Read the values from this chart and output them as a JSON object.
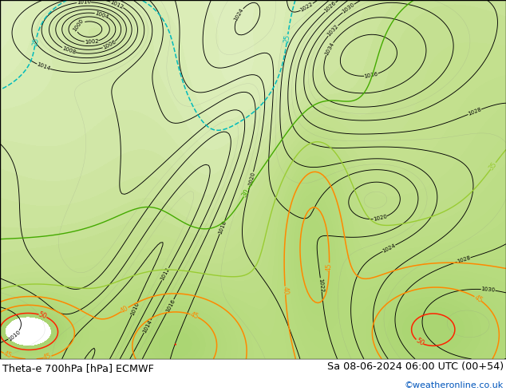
{
  "title_left": "Theta-e 700hPa [hPa] ECMWF",
  "title_right": "Sa 08-06-2024 06:00 UTC (00+54)",
  "credit": "©weatheronline.co.uk",
  "bg_color": "#ffffff",
  "map_bg_light_green": "#c8e8a0",
  "map_bg_gray": "#d8d8d0",
  "border_color": "#000000",
  "fig_width": 6.34,
  "fig_height": 4.9,
  "dpi": 100,
  "bottom_bar_height": 0.082,
  "bottom_text_color": "#000000",
  "credit_color": "#0055bb",
  "font_size_title": 9.2,
  "font_size_credit": 8.0,
  "contour_black": "#000000",
  "contour_green_dark": "#44aa00",
  "contour_green_light": "#99cc33",
  "contour_cyan": "#00bbbb",
  "contour_orange": "#ff8800",
  "contour_red": "#ff2200",
  "contour_yellow": "#cccc00",
  "contour_gray": "#888888"
}
